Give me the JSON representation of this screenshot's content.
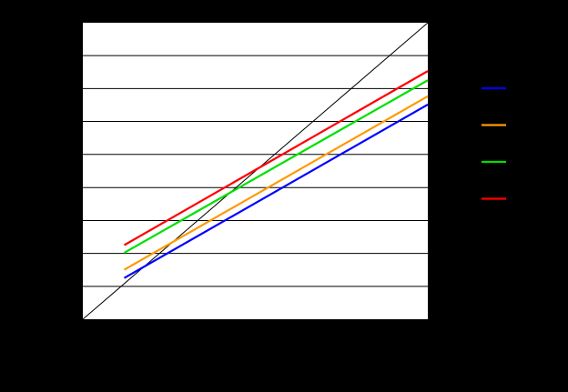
{
  "chart_data": {
    "type": "line",
    "xlim": [
      0,
      1
    ],
    "ylim": [
      0,
      1
    ],
    "grid": {
      "y": true,
      "x": false
    },
    "y_gridlines": [
      0.111,
      0.222,
      0.333,
      0.444,
      0.556,
      0.667,
      0.778,
      0.889
    ],
    "legend_placement": "right",
    "reference_line": {
      "x": [
        0,
        1
      ],
      "y": [
        0,
        1
      ],
      "color": "#000000"
    },
    "series": [
      {
        "color": "#0000ff",
        "x": [
          0.12,
          1.0
        ],
        "y": [
          0.139,
          0.724
        ]
      },
      {
        "color": "#ff9900",
        "x": [
          0.12,
          1.0
        ],
        "y": [
          0.167,
          0.752
        ]
      },
      {
        "color": "#00e000",
        "x": [
          0.12,
          1.0
        ],
        "y": [
          0.224,
          0.806
        ]
      },
      {
        "color": "#ff0000",
        "x": [
          0.12,
          1.0
        ],
        "y": [
          0.25,
          0.837
        ]
      }
    ]
  }
}
